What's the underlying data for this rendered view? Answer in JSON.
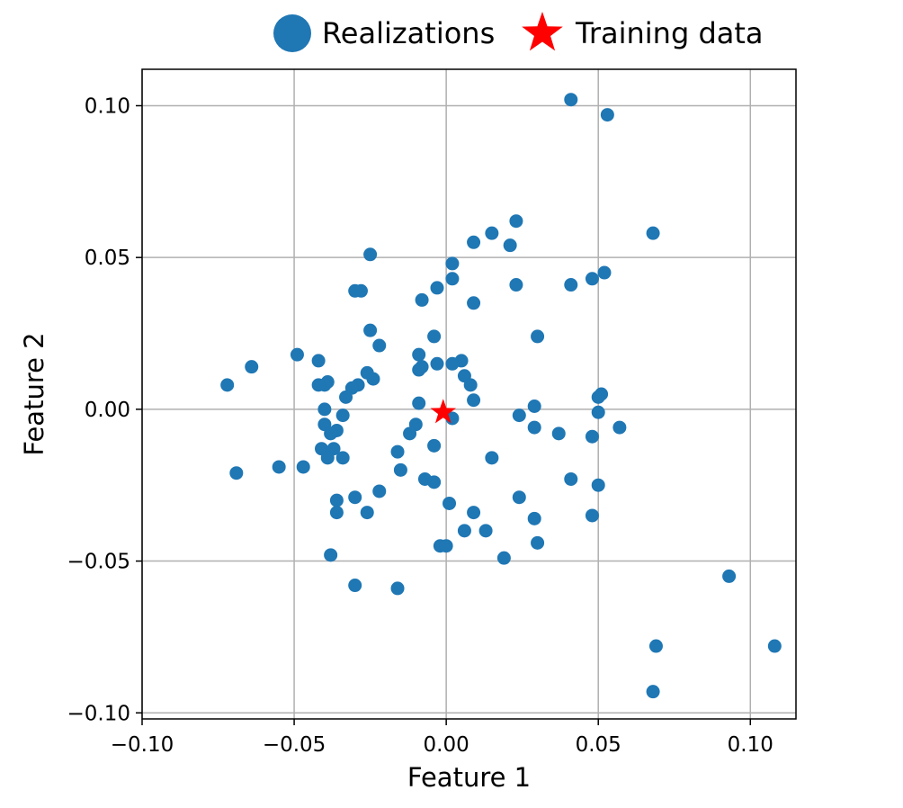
{
  "chart_data": {
    "type": "scatter",
    "xlabel": "Feature 1",
    "ylabel": "Feature 2",
    "xlim": [
      -0.1,
      0.115
    ],
    "ylim": [
      -0.102,
      0.112
    ],
    "xticks": [
      -0.1,
      -0.05,
      0.0,
      0.05,
      0.1
    ],
    "xtick_labels": [
      "−0.10",
      "−0.05",
      "0.00",
      "0.05",
      "0.10"
    ],
    "yticks": [
      -0.1,
      -0.05,
      0.0,
      0.05,
      0.1
    ],
    "ytick_labels": [
      "−0.10",
      "−0.05",
      "0.00",
      "0.05",
      "0.10"
    ],
    "grid": true,
    "legend_placement": "top-center outside",
    "series": [
      {
        "name": "Realizations",
        "marker": "circle",
        "color": "#1f77b4",
        "points": [
          [
            0.041,
            0.102
          ],
          [
            0.053,
            0.097
          ],
          [
            0.068,
            0.058
          ],
          [
            0.023,
            0.062
          ],
          [
            0.015,
            0.058
          ],
          [
            0.009,
            0.055
          ],
          [
            0.021,
            0.054
          ],
          [
            -0.025,
            0.051
          ],
          [
            0.002,
            0.048
          ],
          [
            0.052,
            0.045
          ],
          [
            0.048,
            0.043
          ],
          [
            0.002,
            0.043
          ],
          [
            0.041,
            0.041
          ],
          [
            0.023,
            0.041
          ],
          [
            -0.003,
            0.04
          ],
          [
            -0.028,
            0.039
          ],
          [
            -0.03,
            0.039
          ],
          [
            -0.008,
            0.036
          ],
          [
            0.009,
            0.035
          ],
          [
            -0.025,
            0.026
          ],
          [
            -0.004,
            0.024
          ],
          [
            0.03,
            0.024
          ],
          [
            -0.022,
            0.021
          ],
          [
            -0.049,
            0.018
          ],
          [
            -0.009,
            0.018
          ],
          [
            -0.042,
            0.016
          ],
          [
            0.005,
            0.016
          ],
          [
            0.002,
            0.015
          ],
          [
            -0.003,
            0.015
          ],
          [
            -0.008,
            0.014
          ],
          [
            -0.064,
            0.014
          ],
          [
            -0.009,
            0.013
          ],
          [
            -0.026,
            0.012
          ],
          [
            0.006,
            0.011
          ],
          [
            -0.024,
            0.01
          ],
          [
            -0.039,
            0.009
          ],
          [
            -0.04,
            0.008
          ],
          [
            -0.029,
            0.008
          ],
          [
            -0.072,
            0.008
          ],
          [
            -0.042,
            0.008
          ],
          [
            -0.031,
            0.007
          ],
          [
            0.008,
            0.008
          ],
          [
            -0.033,
            0.004
          ],
          [
            0.009,
            0.003
          ],
          [
            0.051,
            0.005
          ],
          [
            0.05,
            0.004
          ],
          [
            0.029,
            0.001
          ],
          [
            -0.009,
            0.002
          ],
          [
            -0.04,
            0.0
          ],
          [
            0.002,
            -0.003
          ],
          [
            0.05,
            -0.001
          ],
          [
            0.024,
            -0.002
          ],
          [
            -0.034,
            -0.002
          ],
          [
            -0.04,
            -0.005
          ],
          [
            -0.01,
            -0.005
          ],
          [
            0.029,
            -0.006
          ],
          [
            0.057,
            -0.006
          ],
          [
            -0.036,
            -0.007
          ],
          [
            -0.038,
            -0.008
          ],
          [
            -0.012,
            -0.008
          ],
          [
            0.037,
            -0.008
          ],
          [
            0.048,
            -0.009
          ],
          [
            -0.041,
            -0.013
          ],
          [
            -0.004,
            -0.012
          ],
          [
            -0.037,
            -0.013
          ],
          [
            -0.016,
            -0.014
          ],
          [
            -0.039,
            -0.016
          ],
          [
            -0.034,
            -0.016
          ],
          [
            0.015,
            -0.016
          ],
          [
            -0.069,
            -0.021
          ],
          [
            -0.055,
            -0.019
          ],
          [
            -0.047,
            -0.019
          ],
          [
            -0.015,
            -0.02
          ],
          [
            -0.007,
            -0.023
          ],
          [
            -0.004,
            -0.024
          ],
          [
            0.041,
            -0.023
          ],
          [
            0.05,
            -0.025
          ],
          [
            -0.022,
            -0.027
          ],
          [
            0.024,
            -0.029
          ],
          [
            -0.03,
            -0.029
          ],
          [
            -0.036,
            -0.03
          ],
          [
            0.001,
            -0.031
          ],
          [
            0.009,
            -0.034
          ],
          [
            -0.026,
            -0.034
          ],
          [
            -0.036,
            -0.034
          ],
          [
            0.048,
            -0.035
          ],
          [
            0.029,
            -0.036
          ],
          [
            0.006,
            -0.04
          ],
          [
            0.013,
            -0.04
          ],
          [
            0.03,
            -0.044
          ],
          [
            -0.002,
            -0.045
          ],
          [
            0.0,
            -0.045
          ],
          [
            -0.038,
            -0.048
          ],
          [
            0.019,
            -0.049
          ],
          [
            -0.03,
            -0.058
          ],
          [
            -0.016,
            -0.059
          ],
          [
            0.093,
            -0.055
          ],
          [
            0.069,
            -0.078
          ],
          [
            0.108,
            -0.078
          ],
          [
            0.068,
            -0.093
          ]
        ]
      },
      {
        "name": "Training data",
        "marker": "star",
        "color": "#ff0000",
        "points": [
          [
            -0.001,
            -0.001
          ]
        ]
      }
    ]
  }
}
